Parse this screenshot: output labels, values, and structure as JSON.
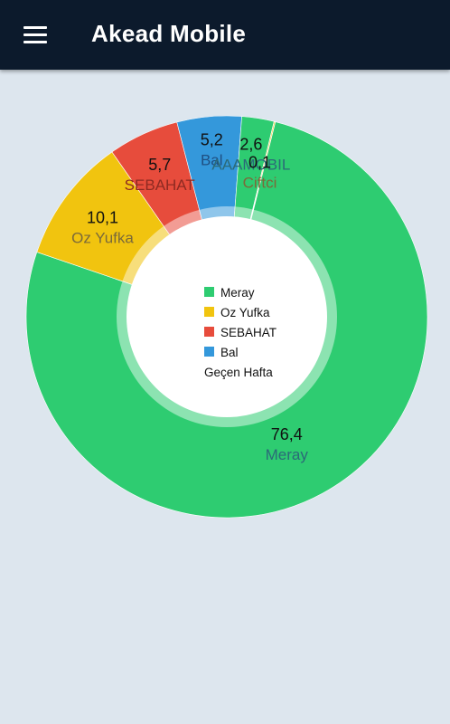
{
  "app": {
    "title": "Akead Mobile",
    "menu_icon": "menu-icon"
  },
  "chart_data": {
    "type": "pie",
    "legend_title": "Geçen Hafta",
    "slices": [
      {
        "label": "Meray",
        "value": 76.4,
        "value_text": "76,4",
        "color": "#2ecc71",
        "name_color": "#2b6a78"
      },
      {
        "label": "Oz  Yufka",
        "value": 10.1,
        "value_text": "10,1",
        "color": "#f1c40f",
        "name_color": "#7b6a3a"
      },
      {
        "label": "SEBAHAT",
        "value": 5.7,
        "value_text": "5,7",
        "color": "#e74c3c",
        "name_color": "#8e2a22"
      },
      {
        "label": "Bal",
        "value": 5.2,
        "value_text": "5,2",
        "color": "#3498db",
        "name_color": "#1f4f82"
      },
      {
        "label": "AAAMOBIL",
        "value": 2.6,
        "value_text": "2,6",
        "color": "#2ecc71",
        "name_color": "#2b6a78"
      },
      {
        "label": "Ciftci",
        "value": 0.1,
        "value_text": "0,1",
        "color": "#f1c40f",
        "name_color": "#7b6a3a"
      }
    ],
    "legend_count": 4
  }
}
